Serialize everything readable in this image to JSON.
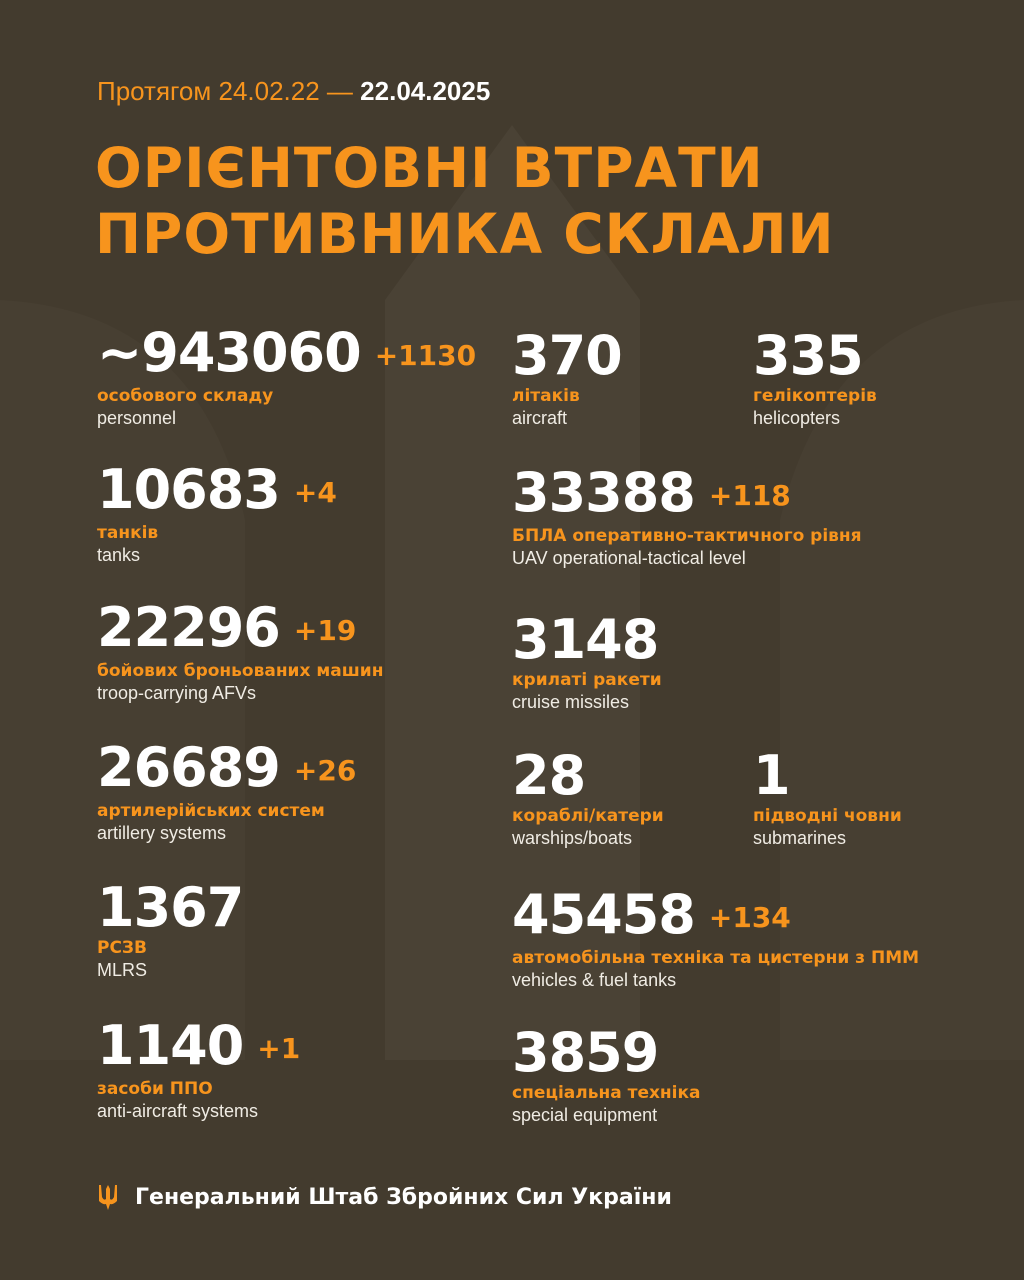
{
  "header": {
    "period_prefix": "Протягом 24.02.22 —",
    "date": "22.04.2025",
    "title_line1": "ОРІЄНТОВНІ ВТРАТИ",
    "title_line2": "ПРОТИВНИКА СКЛАЛИ"
  },
  "colors": {
    "background": "#433b2e",
    "accent": "#f7941d",
    "text": "#ffffff"
  },
  "left": [
    {
      "value": "~943060",
      "delta": "+1130",
      "ua": "особового складу",
      "en": "personnel"
    },
    {
      "value": "10683",
      "delta": "+4",
      "ua": "танків",
      "en": "tanks"
    },
    {
      "value": "22296",
      "delta": "+19",
      "ua": "бойових броньованих машин",
      "en": "troop-carrying AFVs"
    },
    {
      "value": "26689",
      "delta": "+26",
      "ua": "артилерійських систем",
      "en": "artillery systems"
    },
    {
      "value": "1367",
      "delta": "",
      "ua": "РСЗВ",
      "en": "MLRS"
    },
    {
      "value": "1140",
      "delta": "+1",
      "ua": "засоби ППО",
      "en": "anti-aircraft systems"
    }
  ],
  "right": [
    {
      "value": "370",
      "delta": "",
      "ua": "літаків",
      "en": "aircraft"
    },
    {
      "value": "335",
      "delta": "",
      "ua": "гелікоптерів",
      "en": "helicopters"
    },
    {
      "value": "33388",
      "delta": "+118",
      "ua": "БПЛА оперативно-тактичного рівня",
      "en": "UAV operational-tactical level"
    },
    {
      "value": "3148",
      "delta": "",
      "ua": "крилаті ракети",
      "en": "cruise missiles"
    },
    {
      "value": "28",
      "delta": "",
      "ua": "кораблі/катери",
      "en": "warships/boats"
    },
    {
      "value": "1",
      "delta": "",
      "ua": "підводні човни",
      "en": "submarines"
    },
    {
      "value": "45458",
      "delta": "+134",
      "ua": "автомобільна техніка та цистерни з ПММ",
      "en": "vehicles & fuel tanks"
    },
    {
      "value": "3859",
      "delta": "",
      "ua": "спеціальна техніка",
      "en": "special equipment"
    }
  ],
  "footer": {
    "icon": "trident-icon",
    "text": "Генеральний Штаб Збройних Сил України"
  }
}
